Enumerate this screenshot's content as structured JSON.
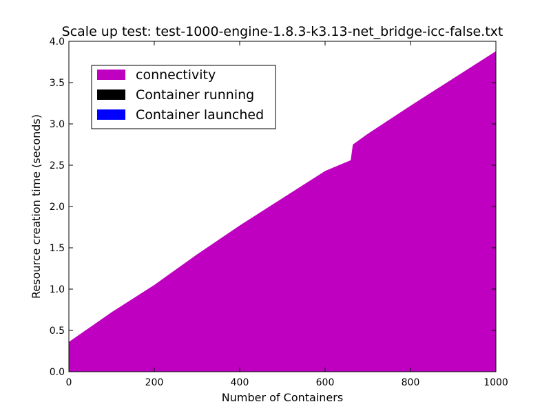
{
  "chart_data": {
    "type": "area",
    "title": "Scale up test: test-1000-engine-1.8.3-k3.13-net_bridge-icc-false.txt",
    "xlabel": "Number of Containers",
    "ylabel": "Resource creation time (seconds)",
    "xlim": [
      0,
      1000
    ],
    "ylim": [
      0,
      4.0
    ],
    "xticks": [
      0,
      200,
      400,
      600,
      800,
      1000
    ],
    "yticks": [
      0.0,
      0.5,
      1.0,
      1.5,
      2.0,
      2.5,
      3.0,
      3.5,
      4.0
    ],
    "xtick_labels": [
      "0",
      "200",
      "400",
      "600",
      "800",
      "1000"
    ],
    "ytick_labels": [
      "0.0",
      "0.5",
      "1.0",
      "1.5",
      "2.0",
      "2.5",
      "3.0",
      "3.5",
      "4.0"
    ],
    "legend_position": "upper-left",
    "series": [
      {
        "name": "connectivity",
        "color": "#c000c0",
        "x": [
          0,
          100,
          200,
          300,
          400,
          500,
          600,
          660,
          665,
          700,
          800,
          900,
          1000
        ],
        "values": [
          0.36,
          0.72,
          1.05,
          1.42,
          1.77,
          2.1,
          2.43,
          2.56,
          2.75,
          2.88,
          3.22,
          3.55,
          3.88
        ]
      },
      {
        "name": "Container running",
        "color": "#000000",
        "x": [
          0,
          100,
          200,
          300,
          400,
          500,
          600,
          660,
          665,
          700,
          800,
          900,
          1000
        ],
        "values": [
          0.3,
          0.64,
          0.97,
          1.34,
          1.68,
          2.01,
          2.34,
          2.47,
          2.65,
          2.78,
          3.12,
          3.45,
          3.78
        ]
      },
      {
        "name": "Container launched",
        "color": "#0000ff",
        "x": [
          0,
          100,
          200,
          300,
          400,
          500,
          600,
          660,
          665,
          700,
          800,
          900,
          1000
        ],
        "values": [
          0.28,
          0.62,
          0.95,
          1.31,
          1.65,
          1.98,
          2.31,
          2.44,
          2.62,
          2.75,
          3.09,
          3.42,
          3.75
        ]
      }
    ]
  }
}
